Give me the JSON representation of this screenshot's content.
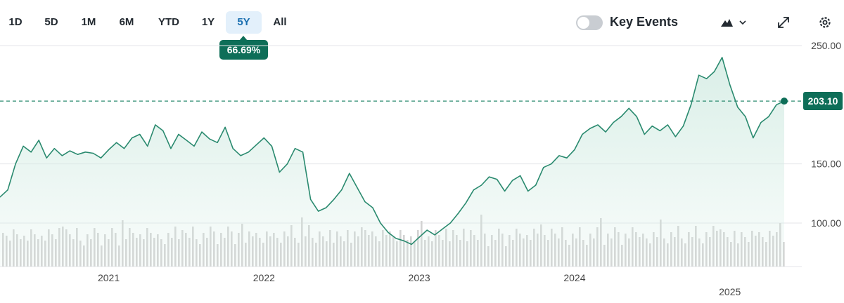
{
  "toolbar": {
    "ranges": [
      {
        "label": "1D",
        "active": false
      },
      {
        "label": "5D",
        "active": false
      },
      {
        "label": "1M",
        "active": false
      },
      {
        "label": "6M",
        "active": false
      },
      {
        "label": "YTD",
        "active": false
      },
      {
        "label": "1Y",
        "active": false
      },
      {
        "label": "5Y",
        "active": true
      },
      {
        "label": "All",
        "active": false
      }
    ],
    "change_pct": "66.69%",
    "key_events_label": "Key Events",
    "key_events_on": false,
    "icons": {
      "chart_type": "mountain-chart-icon",
      "chart_type_menu": "chevron-down-icon",
      "expand": "expand-icon",
      "settings": "gear-icon"
    }
  },
  "colors": {
    "line": "#2a8a6f",
    "fill": "#d6ede5",
    "accent": "#0e6e58",
    "active_tab_bg": "#e3f0fb",
    "active_tab_text": "#1a6fb0",
    "volume": "#d3d3d3"
  },
  "chart_data": {
    "type": "area",
    "x_unit": "year",
    "x_range": [
      2020.3,
      2025.35
    ],
    "ylim": [
      75,
      250
    ],
    "yticks": [
      100,
      150,
      250
    ],
    "ytick_labels": [
      "100.00",
      "150.00",
      "250.00"
    ],
    "xticks": [
      {
        "label": "2021",
        "x": 2021.0
      },
      {
        "label": "2022",
        "x": 2022.0
      },
      {
        "label": "2023",
        "x": 2023.0
      },
      {
        "label": "2024",
        "x": 2024.0
      },
      {
        "label": "2025",
        "x": 2025.0
      }
    ],
    "last_price": 203.1,
    "last_price_label": "203.10",
    "grid": "horizontal",
    "volume_bars": true,
    "series": [
      {
        "x": [
          2020.3,
          2020.35,
          2020.4,
          2020.45,
          2020.5,
          2020.55,
          2020.6,
          2020.65,
          2020.7,
          2020.75,
          2020.8,
          2020.85,
          2020.9,
          2020.95,
          2021.0,
          2021.05,
          2021.1,
          2021.15,
          2021.2,
          2021.25,
          2021.3,
          2021.35,
          2021.4,
          2021.45,
          2021.5,
          2021.55,
          2021.6,
          2021.65,
          2021.7,
          2021.75,
          2021.8,
          2021.85,
          2021.9,
          2021.95,
          2022.0,
          2022.05,
          2022.1,
          2022.15,
          2022.2,
          2022.25,
          2022.3,
          2022.35,
          2022.4,
          2022.45,
          2022.5,
          2022.55,
          2022.6,
          2022.65,
          2022.7,
          2022.75,
          2022.8,
          2022.85,
          2022.9,
          2022.95,
          2023.0,
          2023.05,
          2023.1,
          2023.15,
          2023.2,
          2023.25,
          2023.3,
          2023.35,
          2023.4,
          2023.45,
          2023.5,
          2023.55,
          2023.6,
          2023.65,
          2023.7,
          2023.75,
          2023.8,
          2023.85,
          2023.9,
          2023.95,
          2024.0,
          2024.05,
          2024.1,
          2024.15,
          2024.2,
          2024.25,
          2024.3,
          2024.35,
          2024.4,
          2024.45,
          2024.5,
          2024.55,
          2024.6,
          2024.65,
          2024.7,
          2024.75,
          2024.8,
          2024.85,
          2024.9,
          2024.95,
          2025.0,
          2025.05,
          2025.1,
          2025.15,
          2025.2,
          2025.25,
          2025.3,
          2025.35
        ],
        "y": [
          122,
          128,
          150,
          165,
          160,
          170,
          155,
          163,
          157,
          161,
          158,
          160,
          159,
          155,
          162,
          168,
          163,
          172,
          175,
          165,
          183,
          178,
          163,
          175,
          170,
          165,
          177,
          171,
          168,
          181,
          163,
          157,
          160,
          166,
          172,
          165,
          143,
          150,
          163,
          160,
          120,
          110,
          113,
          120,
          128,
          142,
          130,
          118,
          113,
          100,
          92,
          87,
          85,
          82,
          88,
          94,
          90,
          95,
          100,
          108,
          117,
          128,
          132,
          139,
          137,
          127,
          136,
          140,
          127,
          132,
          147,
          150,
          157,
          155,
          162,
          175,
          180,
          183,
          177,
          185,
          190,
          197,
          190,
          175,
          182,
          178,
          183,
          173,
          182,
          200,
          225,
          222,
          228,
          240,
          217,
          198,
          190,
          172,
          185,
          190,
          200,
          203.1
        ]
      }
    ]
  }
}
